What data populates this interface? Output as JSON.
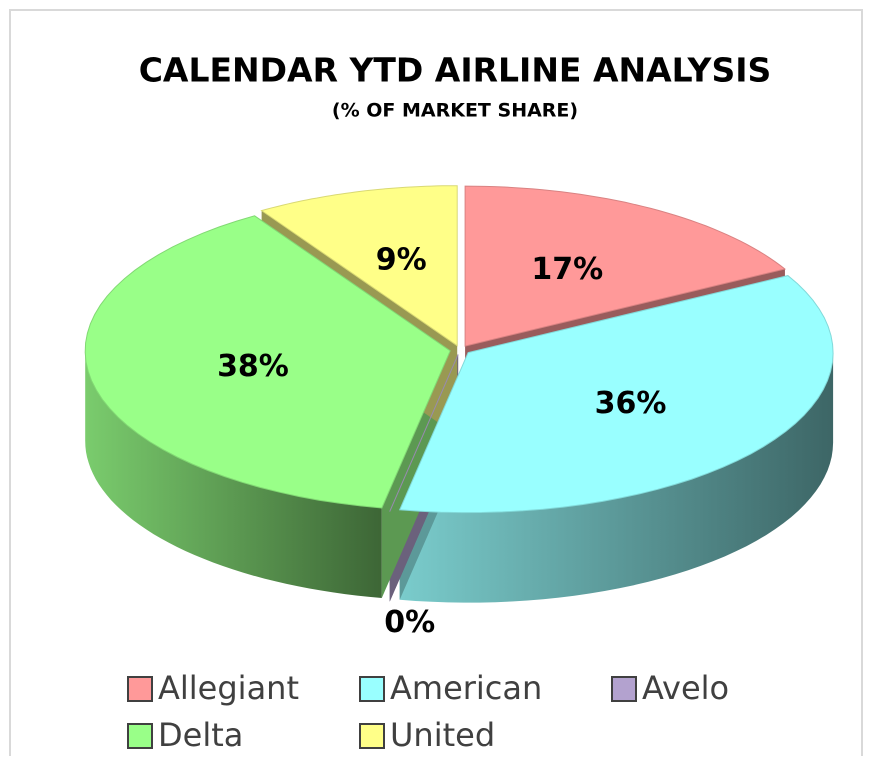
{
  "chart_data": {
    "type": "pie3d",
    "title": "CALENDAR YTD AIRLINE ANALYSIS",
    "subtitle": "(% OF MARKET SHARE)",
    "categories": [
      "Allegiant",
      "American",
      "Avelo",
      "Delta",
      "United"
    ],
    "values": [
      17,
      36,
      0,
      38,
      9
    ],
    "value_labels": [
      "17%",
      "36%",
      "0%",
      "38%",
      "9%"
    ],
    "colors": [
      "#ff9999",
      "#99ffff",
      "#b3a2cf",
      "#99ff88",
      "#ffff88"
    ],
    "legend": "bottom"
  }
}
